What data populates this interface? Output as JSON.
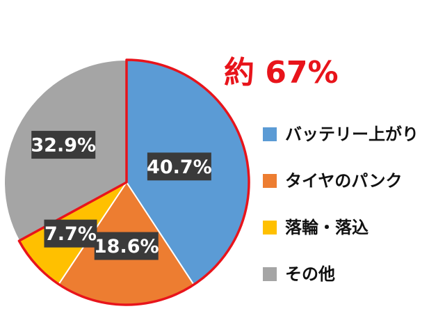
{
  "chart_data": {
    "type": "pie",
    "categories": [
      "バッテリー上がり",
      "タイヤのパンク",
      "落輪・落込",
      "その他"
    ],
    "values": [
      40.7,
      18.6,
      7.7,
      32.9
    ],
    "data_labels": [
      "40.7%",
      "18.6%",
      "7.7%",
      "32.9%"
    ],
    "colors": [
      "#5b9bd5",
      "#ed7d31",
      "#ffc000",
      "#a5a5a5"
    ],
    "start_angle_deg": 0,
    "direction": "clockwise from 12 o'clock",
    "highlighted_categories": [
      "バッテリー上がり",
      "タイヤのパンク",
      "落輪・落込"
    ],
    "highlight_color": "#e8141b",
    "annotation": "約 67%",
    "legend": {
      "position": "right",
      "entries": [
        "バッテリー上がり",
        "タイヤのパンク",
        "落輪・落込",
        "その他"
      ]
    }
  }
}
